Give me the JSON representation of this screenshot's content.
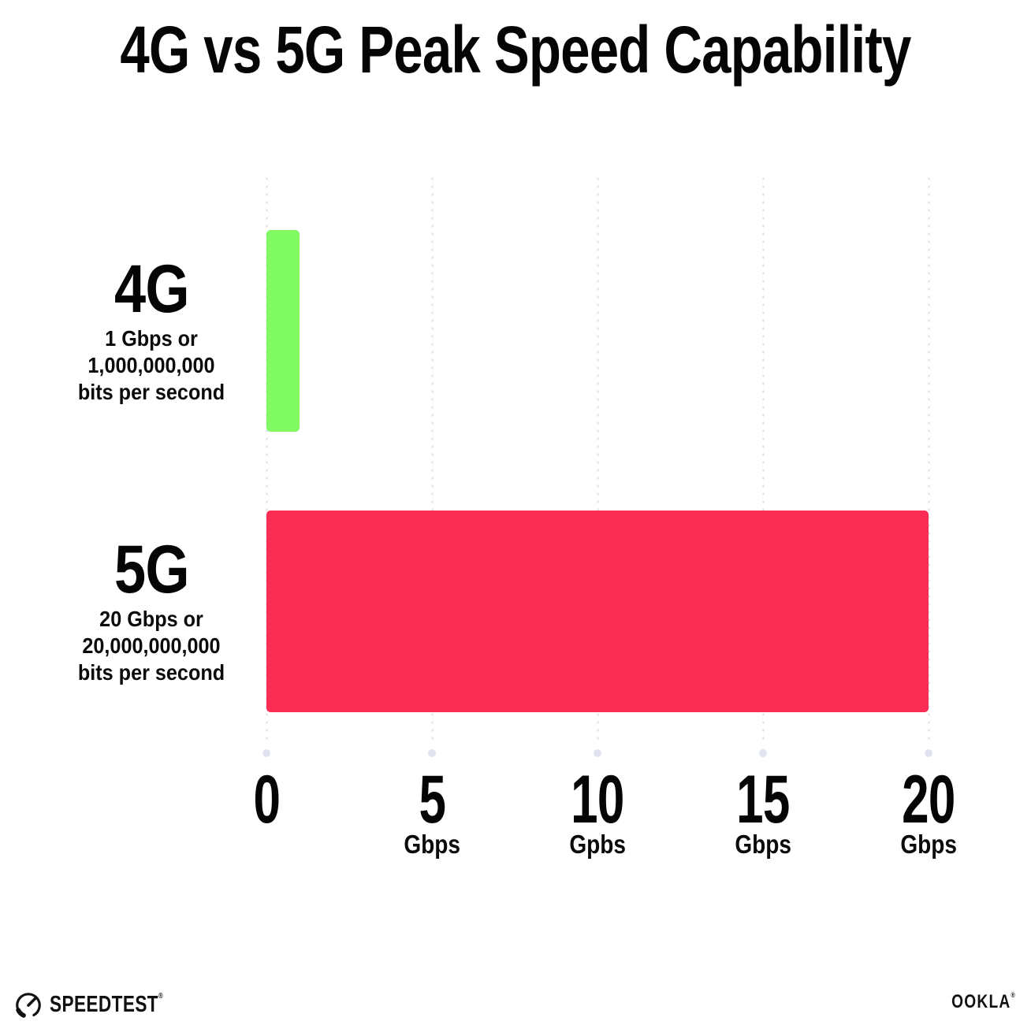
{
  "chart_data": {
    "type": "bar",
    "orientation": "horizontal",
    "title": "4G vs 5G Peak Speed Capability",
    "categories": [
      "4G",
      "5G"
    ],
    "values": [
      1,
      20
    ],
    "unit": "Gbps",
    "xlim": [
      0,
      20
    ],
    "grid": "dotted-vertical",
    "legend": "none",
    "bars": [
      {
        "category": "4G",
        "value": 1,
        "color": "#7FFA63",
        "description_lines": [
          "1 Gbps or",
          "1,000,000,000",
          "bits per second"
        ]
      },
      {
        "category": "5G",
        "value": 20,
        "color": "#FC2D55",
        "description_lines": [
          "20 Gbps or",
          "20,000,000,000",
          "bits per second"
        ]
      }
    ],
    "x_ticks": [
      {
        "value": 0,
        "label": "0",
        "unit": ""
      },
      {
        "value": 5,
        "label": "5",
        "unit": "Gbps"
      },
      {
        "value": 10,
        "label": "10",
        "unit": "Gpbs"
      },
      {
        "value": 15,
        "label": "15",
        "unit": "Gbps"
      },
      {
        "value": 20,
        "label": "20",
        "unit": "Gbps"
      }
    ]
  },
  "footer": {
    "speedtest_label": "SPEEDTEST",
    "speedtest_trademark": "®",
    "ookla_label": "OOKLA",
    "ookla_trademark": "®"
  },
  "colors": {
    "bar_4g": "#7FFA63",
    "bar_5g": "#FC2D55",
    "gridline": "#E1E3F0",
    "text": "#0B0B0B",
    "background": "#FFFFFF"
  }
}
